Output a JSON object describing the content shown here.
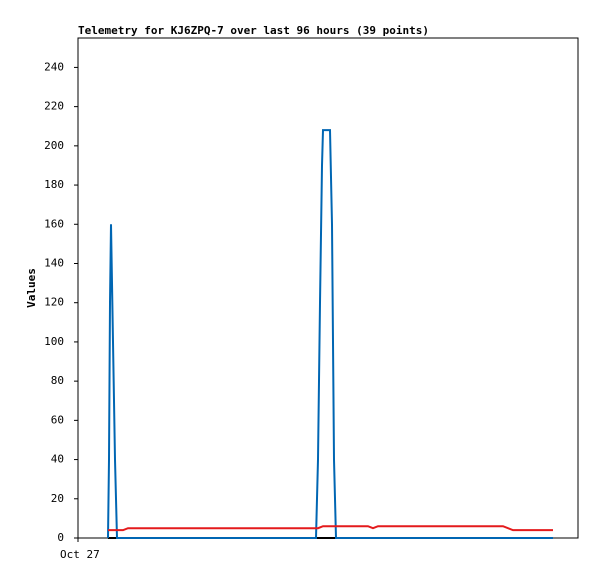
{
  "chart_data": {
    "type": "line",
    "title": "Telemetry for KJ6ZPQ-7 over last 96 hours (39 points)",
    "y_label": "Values",
    "xlim": [
      0,
      100
    ],
    "ylim": [
      0,
      255
    ],
    "xticks": [
      {
        "value": 0,
        "label": "Oct 27"
      }
    ],
    "yticks": [
      0,
      20,
      40,
      60,
      80,
      100,
      120,
      140,
      160,
      180,
      200,
      220,
      240
    ],
    "grid": false,
    "series": [
      {
        "color": "#000000",
        "x": [
          6,
          95
        ],
        "values": [
          0,
          0
        ]
      },
      {
        "color": "#0066b3",
        "x": [
          6,
          6.2,
          6.4,
          6.6,
          7.0,
          7.4,
          7.8,
          47.6,
          48.0,
          48.4,
          48.8,
          49.0,
          50.4,
          50.8,
          51.2,
          51.6,
          95
        ],
        "values": [
          0,
          40,
          120,
          160,
          100,
          40,
          0,
          0,
          40,
          120,
          190,
          208,
          208,
          160,
          40,
          0,
          0
        ]
      },
      {
        "color": "#e41a1c",
        "x": [
          6,
          9,
          10,
          48,
          49,
          58,
          59,
          60,
          85,
          87,
          95
        ],
        "values": [
          4,
          4,
          5,
          5,
          6,
          6,
          5,
          6,
          6,
          4,
          4
        ]
      }
    ]
  }
}
